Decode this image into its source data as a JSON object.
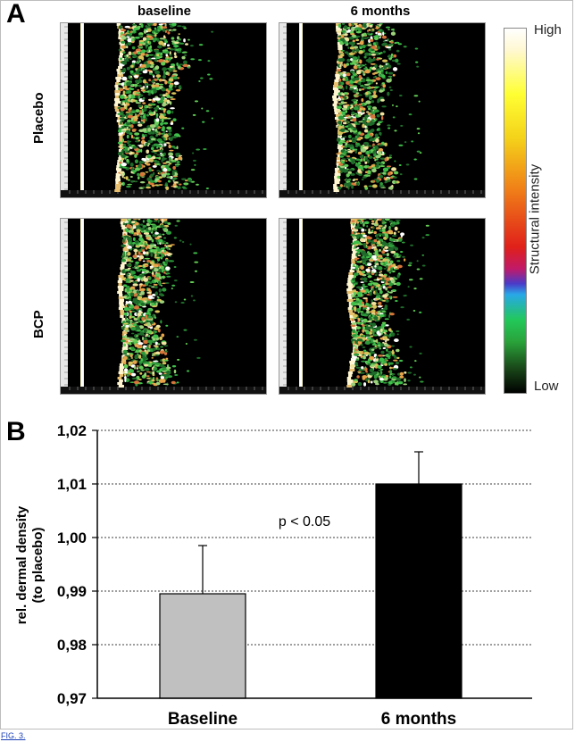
{
  "panel_a": {
    "letter": "A",
    "columns": [
      "baseline",
      "6 months"
    ],
    "rows": [
      "Placebo",
      "BCP"
    ],
    "colorbar": {
      "high": "High",
      "low": "Low",
      "title": "Structural intensity"
    }
  },
  "panel_b": {
    "letter": "B"
  },
  "chart_data": {
    "type": "bar",
    "categories": [
      "Baseline",
      "6 months"
    ],
    "values": [
      0.9895,
      1.01
    ],
    "error": [
      0.009,
      0.006
    ],
    "bar_colors": [
      "#c0c0c0",
      "#000000"
    ],
    "ylabel_line1": "rel. dermal density",
    "ylabel_line2": "(to placebo)",
    "ylim": [
      0.97,
      1.02
    ],
    "yticks": [
      "0,97",
      "0,98",
      "0,99",
      "1,00",
      "1,01",
      "1,02"
    ],
    "annotation": "p < 0.05",
    "grid": "dashed horizontal"
  },
  "footer_link": "FIG. 3."
}
